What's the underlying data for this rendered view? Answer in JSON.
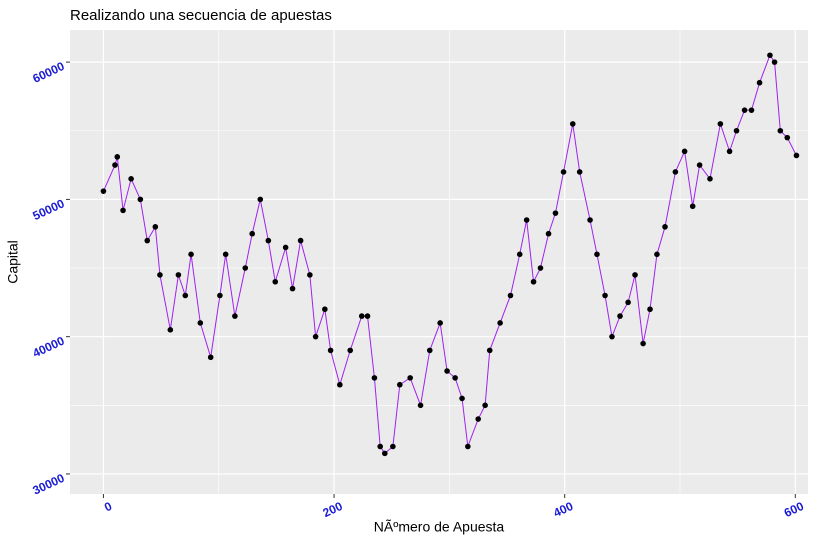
{
  "chart_data": {
    "type": "line",
    "title": "Realizando una secuencia de apuestas",
    "x_label": "NÃºmero de Apuesta",
    "y_label": "Capital",
    "x": [
      0,
      10,
      12,
      17,
      24,
      32,
      38,
      45,
      49,
      58,
      65,
      71,
      76,
      84,
      93,
      101,
      106,
      114,
      123,
      129,
      136,
      143,
      149,
      158,
      164,
      171,
      179,
      184,
      192,
      197,
      205,
      214,
      224,
      229,
      235,
      240,
      244,
      251,
      257,
      266,
      275,
      283,
      292,
      298,
      305,
      311,
      316,
      325,
      331,
      335,
      344,
      353,
      361,
      367,
      373,
      379,
      386,
      392,
      399,
      407,
      413,
      422,
      428,
      435,
      441,
      448,
      455,
      461,
      468,
      474,
      480,
      487,
      496,
      504,
      511,
      517,
      526,
      535,
      543,
      549,
      556,
      562,
      569,
      578,
      582,
      587,
      593,
      601
    ],
    "series": [
      {
        "name": "Capital",
        "color": "#a020f0",
        "point_color": "#000000",
        "values": [
          50600,
          52500,
          53100,
          49200,
          51500,
          50000,
          47000,
          48000,
          44500,
          40500,
          44500,
          43000,
          46000,
          41000,
          38500,
          43000,
          46000,
          41500,
          45000,
          47500,
          50000,
          47000,
          44000,
          46500,
          43500,
          47000,
          44500,
          40000,
          42000,
          39000,
          36500,
          39000,
          41500,
          41500,
          37000,
          32000,
          31500,
          32000,
          36500,
          37000,
          35000,
          39000,
          41000,
          37500,
          37000,
          35500,
          32000,
          34000,
          35000,
          39000,
          41000,
          43000,
          46000,
          48500,
          44000,
          45000,
          47500,
          49000,
          52000,
          55500,
          52000,
          48500,
          46000,
          43000,
          40000,
          41500,
          42500,
          44500,
          39500,
          42000,
          46000,
          48000,
          52000,
          53500,
          49500,
          52500,
          51500,
          55500,
          53500,
          55000,
          56500,
          56500,
          58500,
          60500,
          60000,
          55000,
          54500,
          53200
        ]
      }
    ],
    "xlim": [
      -29,
      611
    ],
    "ylim": [
      28540,
      62340
    ],
    "xticks": [
      0,
      200,
      400,
      600
    ],
    "yticks": [
      30000,
      40000,
      50000,
      60000
    ],
    "grid": true
  }
}
